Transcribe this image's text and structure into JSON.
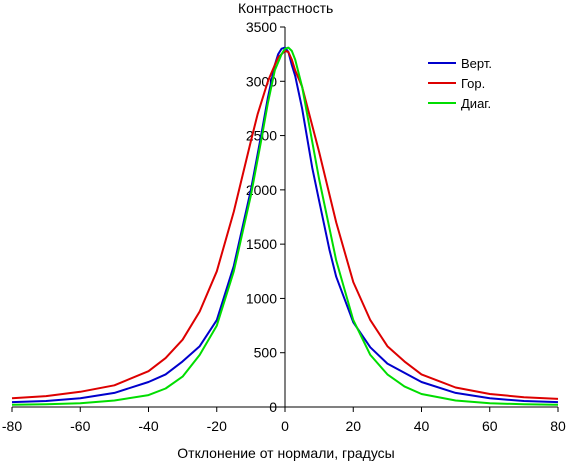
{
  "chart_data": {
    "type": "line",
    "title": "",
    "xlabel": "Отклонение от нормали, градусы",
    "ylabel": "Контрастность",
    "xlim": [
      -80,
      80
    ],
    "ylim": [
      0,
      3500
    ],
    "xticks": [
      -80,
      -60,
      -40,
      -20,
      0,
      20,
      40,
      60,
      80
    ],
    "yticks": [
      0,
      500,
      1000,
      1500,
      2000,
      2500,
      3000,
      3500
    ],
    "grid": false,
    "legend_position": "top-right",
    "series": [
      {
        "name": "Верт.",
        "color": "#0000cc",
        "points": [
          [
            -80,
            45
          ],
          [
            -70,
            55
          ],
          [
            -60,
            80
          ],
          [
            -50,
            130
          ],
          [
            -40,
            230
          ],
          [
            -35,
            300
          ],
          [
            -30,
            420
          ],
          [
            -25,
            560
          ],
          [
            -20,
            800
          ],
          [
            -15,
            1300
          ],
          [
            -10,
            2000
          ],
          [
            -7,
            2500
          ],
          [
            -5,
            2850
          ],
          [
            -3,
            3150
          ],
          [
            -2,
            3250
          ],
          [
            -1,
            3300
          ],
          [
            0,
            3310
          ],
          [
            1,
            3270
          ],
          [
            2,
            3150
          ],
          [
            3,
            3050
          ],
          [
            5,
            2750
          ],
          [
            8,
            2200
          ],
          [
            10,
            1900
          ],
          [
            13,
            1450
          ],
          [
            15,
            1200
          ],
          [
            20,
            780
          ],
          [
            25,
            550
          ],
          [
            30,
            400
          ],
          [
            40,
            230
          ],
          [
            50,
            130
          ],
          [
            60,
            80
          ],
          [
            70,
            55
          ],
          [
            80,
            45
          ]
        ]
      },
      {
        "name": "Гор.",
        "color": "#dd0000",
        "points": [
          [
            -80,
            80
          ],
          [
            -70,
            100
          ],
          [
            -60,
            140
          ],
          [
            -50,
            200
          ],
          [
            -40,
            330
          ],
          [
            -35,
            450
          ],
          [
            -30,
            620
          ],
          [
            -25,
            880
          ],
          [
            -20,
            1250
          ],
          [
            -15,
            1800
          ],
          [
            -10,
            2450
          ],
          [
            -8,
            2700
          ],
          [
            -5,
            3000
          ],
          [
            -3,
            3150
          ],
          [
            -2,
            3220
          ],
          [
            0,
            3280
          ],
          [
            1,
            3270
          ],
          [
            2,
            3200
          ],
          [
            3,
            3100
          ],
          [
            5,
            2950
          ],
          [
            10,
            2350
          ],
          [
            15,
            1700
          ],
          [
            20,
            1150
          ],
          [
            25,
            800
          ],
          [
            30,
            560
          ],
          [
            35,
            420
          ],
          [
            40,
            300
          ],
          [
            50,
            180
          ],
          [
            60,
            120
          ],
          [
            70,
            90
          ],
          [
            80,
            75
          ]
        ]
      },
      {
        "name": "Диаг.",
        "color": "#00dd00",
        "points": [
          [
            -80,
            20
          ],
          [
            -70,
            25
          ],
          [
            -60,
            35
          ],
          [
            -50,
            60
          ],
          [
            -40,
            110
          ],
          [
            -35,
            170
          ],
          [
            -30,
            280
          ],
          [
            -25,
            480
          ],
          [
            -20,
            750
          ],
          [
            -15,
            1250
          ],
          [
            -10,
            1950
          ],
          [
            -7,
            2450
          ],
          [
            -5,
            2800
          ],
          [
            -3,
            3100
          ],
          [
            -1,
            3250
          ],
          [
            0,
            3300
          ],
          [
            1,
            3310
          ],
          [
            2,
            3280
          ],
          [
            3,
            3200
          ],
          [
            5,
            2950
          ],
          [
            10,
            2100
          ],
          [
            15,
            1350
          ],
          [
            20,
            800
          ],
          [
            25,
            480
          ],
          [
            30,
            300
          ],
          [
            35,
            190
          ],
          [
            40,
            120
          ],
          [
            50,
            60
          ],
          [
            60,
            35
          ],
          [
            70,
            25
          ],
          [
            80,
            20
          ]
        ]
      }
    ]
  }
}
